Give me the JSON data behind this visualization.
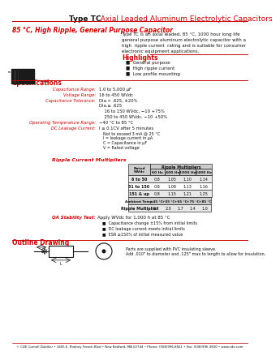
{
  "title_bold": "Type TC",
  "title_red": "  Axial Leaded Aluminum Electrolytic Capacitors",
  "subtitle": "85 °C, High Ripple, General Purpose Capacitor",
  "desc_lines": [
    "Type TC is an axial leaded, 85 °C, 1000 hour long life",
    "general purpose aluminum electrolytic capacitor with a",
    "high  ripple current  rating and is suitable for consumer",
    "electronic equipment applications."
  ],
  "highlights_title": "Highlights",
  "highlights": [
    "General purpose",
    "High ripple current",
    "Low profile mounting"
  ],
  "specs_title": "Specifications",
  "specs": [
    [
      "Capacitance Range:",
      "1.0 to 5,000 μF"
    ],
    [
      "Voltage Range:",
      "16 to 450 WVdc"
    ],
    [
      "Capacitance Tolerance:",
      "Dia.< .625, ±20%"
    ],
    [
      "",
      "Dia.≥ .625"
    ],
    [
      "",
      "    16 to 150 WVdc, −10 +75%"
    ],
    [
      "",
      "    250 to 450 WVdc, −10 +50%"
    ],
    [
      "Operating Temperature Range:",
      "−40 °C to 85 °C"
    ],
    [
      "DC Leakage Current:",
      "I ≤ 0.1CV after 5 minutes"
    ]
  ],
  "dc_extra": [
    "Not to exceed 3 mA @ 25 °C",
    "I = leakage current in μA",
    "C = Capacitance in μF",
    "V = Rated voltage"
  ],
  "ripple_title": "Ripple Current Multipliers",
  "ripple_col_header": "Ripple Multipliers",
  "ripple_headers": [
    "Rated\nWVdc",
    "60 Hz",
    "400 Hz",
    "1000 Hz",
    "2400 Hz"
  ],
  "ripple_rows": [
    [
      "6 to 50",
      "0.8",
      "1.05",
      "1.10",
      "1.14"
    ],
    [
      "51 to 150",
      "0.8",
      "1.08",
      "1.13",
      "1.16"
    ],
    [
      "151 & up",
      "0.8",
      "1.15",
      "1.21",
      "1.25"
    ]
  ],
  "amb_headers": [
    "Ambient Temp.",
    "+45 °C",
    "+55 °C",
    "+65 °C",
    "+75 °C",
    "+85 °C"
  ],
  "amb_row": [
    "Ripple Multiplier",
    "2.2",
    "2.0",
    "1.7",
    "1.4",
    "1.0"
  ],
  "qa_label": "QA Stability Test:",
  "qa_text": "Apply WVdc for 1,000 h at 85 °C",
  "qa_bullets": [
    "Capacitance change ±15% from initial limits",
    "DC leakage current meets initial limits",
    "ESR ≤150% of initial measured value"
  ],
  "outline_title": "Outline Drawing",
  "outline_note1": "Parts are supplied with PVC insulating sleeve.",
  "outline_note2": "Add .010\" to diameter and .125\" max to length to allow for insulation.",
  "footer": "© CDE Cornell Dubilier • 1605 E. Rodney French Blvd • New Bedford, MA 02744 • Phone: (508)996-8561 • Fax: (508)996-3830 • www.cde.com",
  "red": "#CC0000",
  "black": "#111111",
  "gray_bg": "#cccccc",
  "light_gray": "#e8e8e8"
}
